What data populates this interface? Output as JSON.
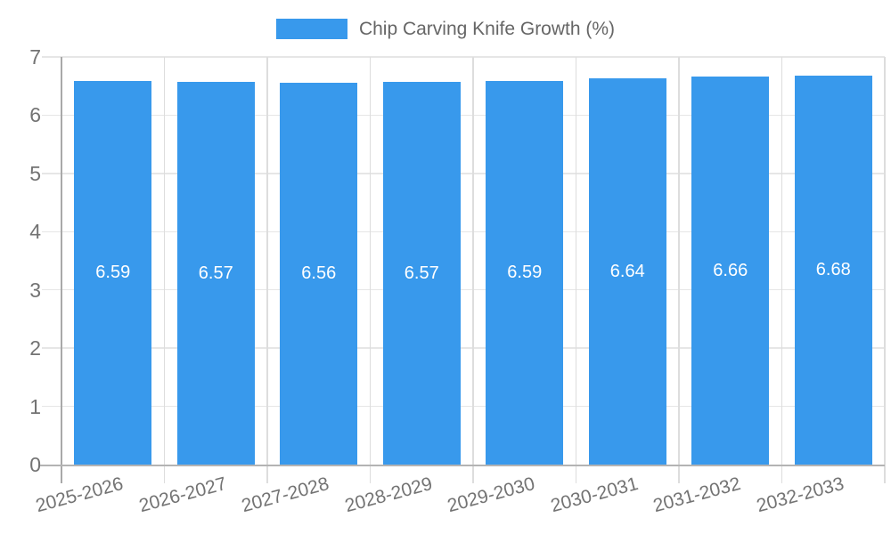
{
  "page": {
    "background": "#ffffff"
  },
  "legend": {
    "label": "Chip Carving Knife Growth (%)",
    "swatch_color": "#3899EC"
  },
  "chart_data": {
    "type": "bar",
    "title": "Chip Carving Knife Growth (%)",
    "categories": [
      "2025-2026",
      "2026-2027",
      "2027-2028",
      "2028-2029",
      "2029-2030",
      "2030-2031",
      "2031-2032",
      "2032-2033"
    ],
    "values": [
      6.59,
      6.57,
      6.56,
      6.57,
      6.59,
      6.64,
      6.66,
      6.68
    ],
    "value_labels": [
      "6.59",
      "6.57",
      "6.56",
      "6.57",
      "6.59",
      "6.64",
      "6.66",
      "6.68"
    ],
    "xlabel": "",
    "ylabel": "",
    "ylim": [
      0,
      7
    ],
    "yticks": [
      "0",
      "1",
      "2",
      "3",
      "4",
      "5",
      "6",
      "7"
    ],
    "grid": true,
    "legend_position": "top-center",
    "x_tick_rotation_deg": -15,
    "colors": {
      "bar": "#3899EC",
      "h_grid": "#e6e6e6",
      "v_grid": "#dddddd",
      "y_axis_line": "#a9a9a9",
      "x_axis_line": "#b3b3b3",
      "tick_text": "#737373",
      "legend_text": "#666666",
      "value_text": "#ffffff",
      "background": "#ffffff"
    }
  }
}
